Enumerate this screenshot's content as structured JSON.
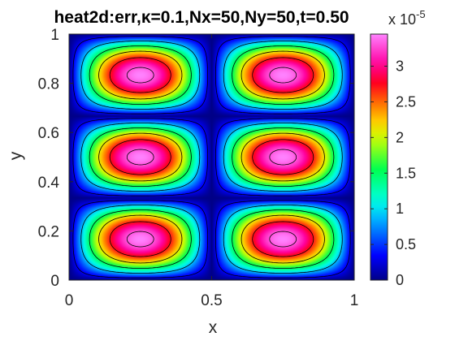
{
  "chart_data": {
    "type": "heatmap",
    "title": "heat2d:err,κ=0.1,Nx=50,Ny=50,t=0.50",
    "xlabel": "x",
    "ylabel": "y",
    "xlim": [
      0,
      1
    ],
    "ylim": [
      0,
      1
    ],
    "x_ticks": [
      "0",
      "0.5",
      "1"
    ],
    "y_ticks": [
      "0",
      "0.2",
      "0.4",
      "0.6",
      "0.8",
      "1"
    ],
    "colorbar": {
      "range": [
        0,
        3.45
      ],
      "ticks": [
        "0",
        "0.5",
        "1",
        "1.5",
        "2",
        "2.5",
        "3"
      ],
      "exponent": "x 10",
      "exponent_power": "-5",
      "colormap": "hsv"
    },
    "field": {
      "function": "|sin(2πx)·sin(3πy)|",
      "max": 3.45,
      "peaks": [
        {
          "x": 0.25,
          "y": 0.1667,
          "value": 3.45
        },
        {
          "x": 0.75,
          "y": 0.1667,
          "value": 3.45
        },
        {
          "x": 0.25,
          "y": 0.5,
          "value": 3.45
        },
        {
          "x": 0.75,
          "y": 0.5,
          "value": 3.45
        },
        {
          "x": 0.25,
          "y": 0.8333,
          "value": 3.45
        },
        {
          "x": 0.75,
          "y": 0.8333,
          "value": 3.45
        }
      ]
    },
    "contour_levels": [
      0.3,
      0.9,
      1.5,
      2.1,
      2.7,
      3.3
    ],
    "grid": false,
    "legend": "none"
  }
}
